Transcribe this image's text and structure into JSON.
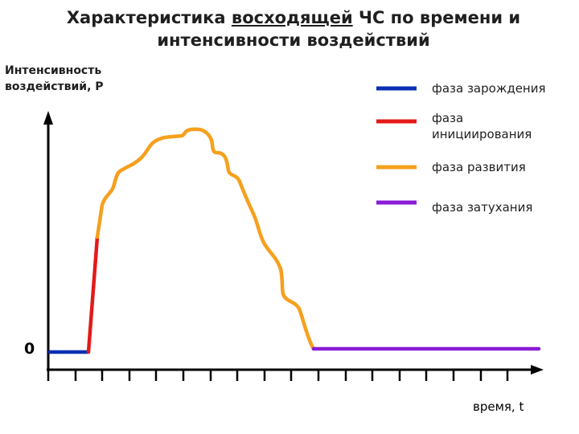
{
  "title": {
    "line1_before": "Характеристика ",
    "line1_underlined": "восходящей",
    "line1_after": " ЧС по времени и",
    "line2": "интенсивности воздействий"
  },
  "axes": {
    "ylabel_line1": "Интенсивность",
    "ylabel_line2": "воздействий, P",
    "origin": "0",
    "xlabel": "время, t"
  },
  "legend": [
    {
      "label": "фаза зарождения",
      "color": "#0b2fb3"
    },
    {
      "label_line1": "фаза",
      "label_line2": "инициирования",
      "color": "#e31a1a"
    },
    {
      "label": "фаза развития",
      "color": "#f5a01e"
    },
    {
      "label": "фаза затухания",
      "color": "#8a1bd6"
    }
  ],
  "colors": {
    "axis": "#000000",
    "phase_origin": "#0b2fb3",
    "phase_initiation": "#e31a1a",
    "phase_development": "#f5a01e",
    "phase_decay": "#8a1bd6"
  }
}
